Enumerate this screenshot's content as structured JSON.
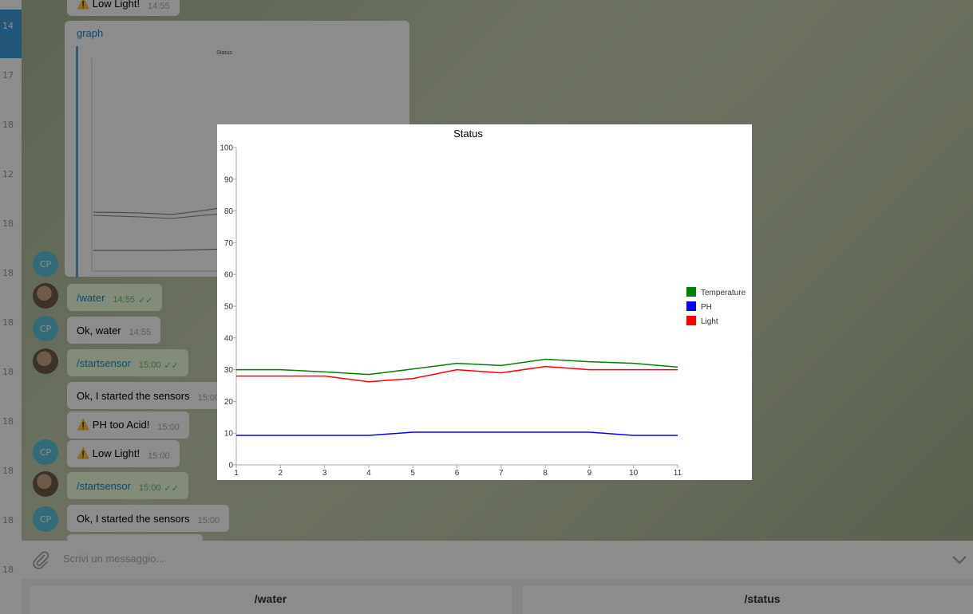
{
  "chat": {
    "messages": [
      {
        "text": "⚠️ Low Light!",
        "time": "14:55"
      },
      {
        "link": "graph"
      },
      {
        "cmd": "/water",
        "time": "14:55"
      },
      {
        "text": "Ok, water",
        "time": "14:55"
      },
      {
        "cmd": "/startsensor",
        "time": "15:00"
      },
      {
        "text": "Ok, I started the sensors",
        "time": "15:00"
      },
      {
        "text": "⚠️ PH too Acid!",
        "time": "15:00"
      },
      {
        "text": "⚠️ Low Light!",
        "time": "15:00"
      },
      {
        "cmd": "/startsensor",
        "time": "15:00"
      },
      {
        "text": "Ok, I started the sensors",
        "time": "15:00"
      }
    ],
    "avatar_initials": "CP",
    "thumb_title": "Status"
  },
  "sidebar": {
    "times": [
      "14",
      "17",
      "18",
      "12",
      "18",
      "18",
      "18",
      "18",
      "18",
      "18",
      "18",
      "18"
    ]
  },
  "composer": {
    "placeholder": "Scrivi un messaggio..."
  },
  "keyboard": {
    "buttons": [
      "/water",
      "/status"
    ]
  },
  "colors": {
    "temperature": "#008000",
    "ph": "#0000ff",
    "light": "#ff0000",
    "link": "#168acd",
    "accent": "#419fd9"
  },
  "chart_data": {
    "type": "line",
    "title": "Status",
    "x": [
      1,
      2,
      3,
      4,
      5,
      6,
      7,
      8,
      9,
      10,
      11
    ],
    "ylim": [
      0,
      100
    ],
    "yticks": [
      0,
      10,
      20,
      30,
      40,
      50,
      60,
      70,
      80,
      90,
      100
    ],
    "legend_position": "right",
    "series": [
      {
        "name": "Temperature",
        "color": "#008000",
        "values": [
          30,
          30,
          29.3,
          28.5,
          30.2,
          32,
          31.3,
          33.3,
          32.5,
          32,
          30.8
        ]
      },
      {
        "name": "PH",
        "color": "#0000ff",
        "values": [
          9.3,
          9.3,
          9.3,
          9.3,
          10.3,
          10.3,
          10.3,
          10.3,
          10.3,
          9.3,
          9.3
        ]
      },
      {
        "name": "Light",
        "color": "#ff0000",
        "values": [
          28,
          28,
          28,
          26.2,
          27.2,
          30,
          29,
          31,
          30,
          30,
          30
        ]
      }
    ]
  }
}
